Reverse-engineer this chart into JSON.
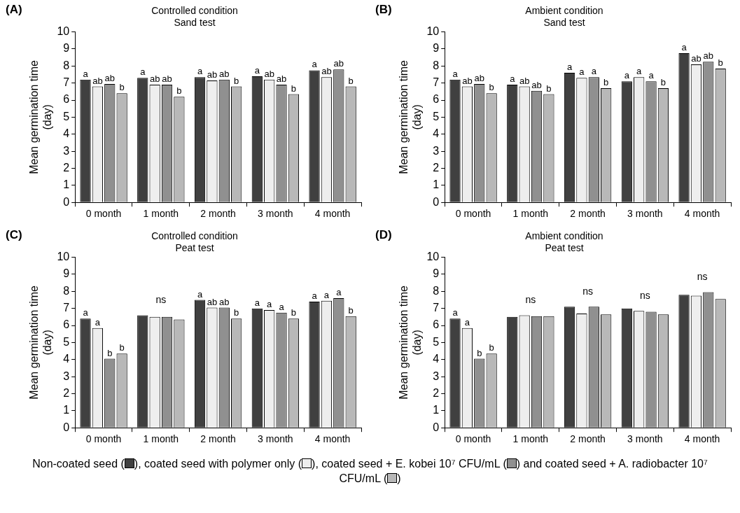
{
  "chart_data": [
    {
      "type": "bar",
      "title": "Controlled condition",
      "subtitle": "Sand test",
      "ylabel": "Mean germination time (day)",
      "categories": [
        "0 month",
        "1 month",
        "2 month",
        "3 month",
        "4 month"
      ],
      "ylim": [
        0,
        10
      ],
      "yticks": [
        0,
        1,
        2,
        3,
        4,
        5,
        6,
        7,
        8,
        9,
        10
      ],
      "grid": false,
      "annotations": [
        "(A)"
      ],
      "series": [
        {
          "color": "#404040",
          "values": [
            7.2,
            7.3,
            7.35,
            7.4,
            7.75
          ],
          "value_labels": [
            "a",
            "a",
            "a",
            "a",
            "a"
          ]
        },
        {
          "color": "#eeeeee",
          "values": [
            6.8,
            6.9,
            7.15,
            7.2,
            7.35
          ],
          "value_labels": [
            "ab",
            "ab",
            "ab",
            "ab",
            "ab"
          ]
        },
        {
          "color": "#909090",
          "values": [
            6.95,
            6.9,
            7.2,
            6.9,
            7.8
          ],
          "value_labels": [
            "ab",
            "ab",
            "ab",
            "ab",
            "ab"
          ]
        },
        {
          "color": "#b8b8b8",
          "values": [
            6.4,
            6.2,
            6.8,
            6.35,
            6.8
          ],
          "value_labels": [
            "b",
            "b",
            "b",
            "b",
            "b"
          ]
        }
      ]
    },
    {
      "type": "bar",
      "title": "Ambient condition",
      "subtitle": "Sand test",
      "ylabel": "Mean germination time (day)",
      "categories": [
        "0 month",
        "1 month",
        "2 month",
        "3 month",
        "4 month"
      ],
      "ylim": [
        0,
        10
      ],
      "yticks": [
        0,
        1,
        2,
        3,
        4,
        5,
        6,
        7,
        8,
        9,
        10
      ],
      "grid": false,
      "annotations": [
        "(B)"
      ],
      "series": [
        {
          "color": "#404040",
          "values": [
            7.2,
            6.9,
            7.6,
            7.1,
            8.75
          ],
          "value_labels": [
            "a",
            "a",
            "a",
            "a",
            "a"
          ]
        },
        {
          "color": "#eeeeee",
          "values": [
            6.8,
            6.8,
            7.3,
            7.35,
            8.1
          ],
          "value_labels": [
            "ab",
            "ab",
            "a",
            "a",
            "ab"
          ]
        },
        {
          "color": "#909090",
          "values": [
            6.95,
            6.55,
            7.35,
            7.1,
            8.25
          ],
          "value_labels": [
            "ab",
            "ab",
            "a",
            "a",
            "ab"
          ]
        },
        {
          "color": "#b8b8b8",
          "values": [
            6.4,
            6.35,
            6.7,
            6.7,
            7.85
          ],
          "value_labels": [
            "b",
            "b",
            "b",
            "b",
            "b"
          ]
        }
      ]
    },
    {
      "type": "bar",
      "title": "Controlled condition",
      "subtitle": "Peat test",
      "ylabel": "Mean germination time (day)",
      "categories": [
        "0 month",
        "1 month",
        "2 month",
        "3 month",
        "4 month"
      ],
      "ylim": [
        0,
        10
      ],
      "yticks": [
        0,
        1,
        2,
        3,
        4,
        5,
        6,
        7,
        8,
        9,
        10
      ],
      "grid": false,
      "annotations": [
        "(C)",
        {
          "text": "ns",
          "x": "1 month",
          "y": 6.6
        }
      ],
      "series": [
        {
          "color": "#404040",
          "values": [
            6.4,
            6.6,
            7.5,
            7.0,
            7.4
          ],
          "value_labels": [
            "a",
            null,
            "a",
            "a",
            "a"
          ]
        },
        {
          "color": "#eeeeee",
          "values": [
            5.85,
            6.5,
            7.05,
            6.9,
            7.45
          ],
          "value_labels": [
            "a",
            null,
            "ab",
            "a",
            "a"
          ]
        },
        {
          "color": "#909090",
          "values": [
            4.05,
            6.5,
            7.05,
            6.75,
            7.6
          ],
          "value_labels": [
            "b",
            null,
            "ab",
            "a",
            "a"
          ]
        },
        {
          "color": "#b8b8b8",
          "values": [
            4.35,
            6.35,
            6.4,
            6.4,
            6.55
          ],
          "value_labels": [
            "b",
            null,
            "b",
            "b",
            "b"
          ]
        }
      ]
    },
    {
      "type": "bar",
      "title": "Ambient condition",
      "subtitle": "Peat test",
      "ylabel": "Mean germination time (day)",
      "categories": [
        "0 month",
        "1 month",
        "2 month",
        "3 month",
        "4 month"
      ],
      "ylim": [
        0,
        10
      ],
      "yticks": [
        0,
        1,
        2,
        3,
        4,
        5,
        6,
        7,
        8,
        9,
        10
      ],
      "grid": false,
      "annotations": [
        "(D)",
        {
          "text": "ns",
          "x": "1 month",
          "y": 6.6
        },
        {
          "text": "ns",
          "x": "2 month",
          "y": 7.1
        },
        {
          "text": "ns",
          "x": "3 month",
          "y": 6.85
        },
        {
          "text": "ns",
          "x": "4 month",
          "y": 7.95
        },
        "Non-coated seed (",
        "), coated seed with polymer only (",
        "), coated seed + E. kobei 10⁷ CFU/mL (",
        ") and coated seed + A. radiobacter 10⁷ CFU/mL (",
        ")"
      ],
      "series": [
        {
          "color": "#404040",
          "values": [
            6.4,
            6.5,
            7.1,
            7.0,
            7.8
          ],
          "value_labels": [
            "a",
            null,
            null,
            null,
            null
          ]
        },
        {
          "color": "#eeeeee",
          "values": [
            5.85,
            6.6,
            6.7,
            6.85,
            7.75
          ],
          "value_labels": [
            "a",
            null,
            null,
            null,
            null
          ]
        },
        {
          "color": "#909090",
          "values": [
            4.05,
            6.55,
            7.1,
            6.8,
            7.95
          ],
          "value_labels": [
            "b",
            null,
            null,
            null,
            null
          ]
        },
        {
          "color": "#b8b8b8",
          "values": [
            4.35,
            6.55,
            6.65,
            6.65,
            7.55
          ],
          "value_labels": [
            "b",
            null,
            null,
            null,
            null
          ]
        }
      ]
    }
  ]
}
